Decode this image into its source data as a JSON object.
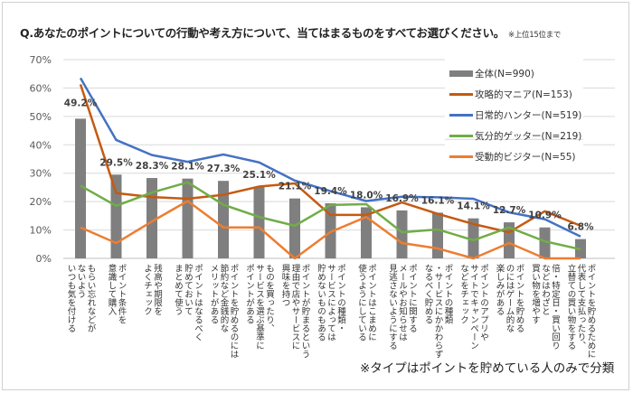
{
  "title": "Q.あなたのポイントについての行動や考え方について、当てはまるものをすべてお選びください。",
  "title_note": "※上位15位まで",
  "footnote": "※タイプはポイントを貯めている人のみで分類",
  "chart_data": {
    "type": "bar",
    "ylim": [
      0,
      70
    ],
    "yticks": [
      0,
      10,
      20,
      30,
      40,
      50,
      60,
      70
    ],
    "ytick_labels": [
      "0%",
      "10%",
      "20%",
      "30%",
      "40%",
      "50%",
      "60%",
      "70%"
    ],
    "grid": true,
    "legend": "top-right",
    "categories": [
      "もらい忘れなどが\nないよう\nいつも気を付ける",
      "ポイント条件を\n意識して購入",
      "残高や期限を\nよくチェック",
      "ポイントはなるべく\n貯めておいて\nまとめて使う",
      "ポイントを貯めるのには\n節約など金銭的な\nメリットがある",
      "ものを買ったり、\nサービスを選ぶ基準に\nポイントがある",
      "ポイントが貯まるという\n理由で店やサービスに\n興味を持つ",
      "ポイントの種類・\nサービスによっては\n貯めないものもある",
      "ポイントはこまめに\n使うようにしている",
      "ポイントに関する\nメールやお知らせは\n見逃さないようにする",
      "ポイントの種類\n・サービスにかかわらず\nなるべく貯める",
      "ポイントのアプリや\nサイトでキャンペーン\nなどをチェック",
      "ポイントを貯める\nのにはゲーム的な\n楽しみがある",
      "倍・特定日・買い回り\nなどはわざと\n買い物を増やす",
      "ポイントを貯めるために\n代表して支払ったり、\n立替ての買い物をする"
    ],
    "series": [
      {
        "name": "全体(N=990)",
        "kind": "bar",
        "color": "#7f7f7f",
        "values": [
          49.2,
          29.5,
          28.3,
          28.1,
          27.3,
          25.1,
          21.1,
          19.4,
          18.0,
          16.9,
          16.1,
          14.1,
          12.7,
          10.9,
          6.8
        ],
        "labels": [
          "49.2%",
          "29.5%",
          "28.3%",
          "28.1%",
          "27.3%",
          "25.1%",
          "21.1%",
          "19.4%",
          "18.0%",
          "16.9%",
          "16.1%",
          "14.1%",
          "12.7%",
          "10.9%",
          "6.8%"
        ]
      },
      {
        "name": "攻略的マニア(N=153)",
        "kind": "line",
        "color": "#c55a11",
        "values": [
          61.3,
          23.0,
          21.6,
          21.0,
          22.4,
          25.3,
          26.4,
          15.3,
          15.3,
          19.7,
          15.7,
          12.1,
          9.2,
          16.6,
          11.5
        ]
      },
      {
        "name": "日常的ハンター(N=519)",
        "kind": "line",
        "color": "#4472c4",
        "values": [
          63.5,
          41.7,
          36.4,
          34.0,
          36.6,
          33.8,
          27.4,
          23.7,
          20.2,
          21.7,
          21.5,
          21.0,
          16.2,
          13.8,
          7.7
        ]
      },
      {
        "name": "気分的ゲッター(N=219)",
        "kind": "line",
        "color": "#70ad47",
        "values": [
          25.6,
          18.5,
          23.2,
          26.8,
          18.9,
          14.6,
          11.5,
          18.8,
          19.1,
          9.2,
          10.2,
          6.4,
          10.9,
          6.0,
          3.2
        ]
      },
      {
        "name": "受動的ビジター(N=55)",
        "kind": "line",
        "color": "#ed7d31",
        "values": [
          10.9,
          5.4,
          13.0,
          20.2,
          10.9,
          10.9,
          0.0,
          9.3,
          14.6,
          5.4,
          3.5,
          0.0,
          5.4,
          0.0,
          0.0
        ]
      }
    ]
  }
}
